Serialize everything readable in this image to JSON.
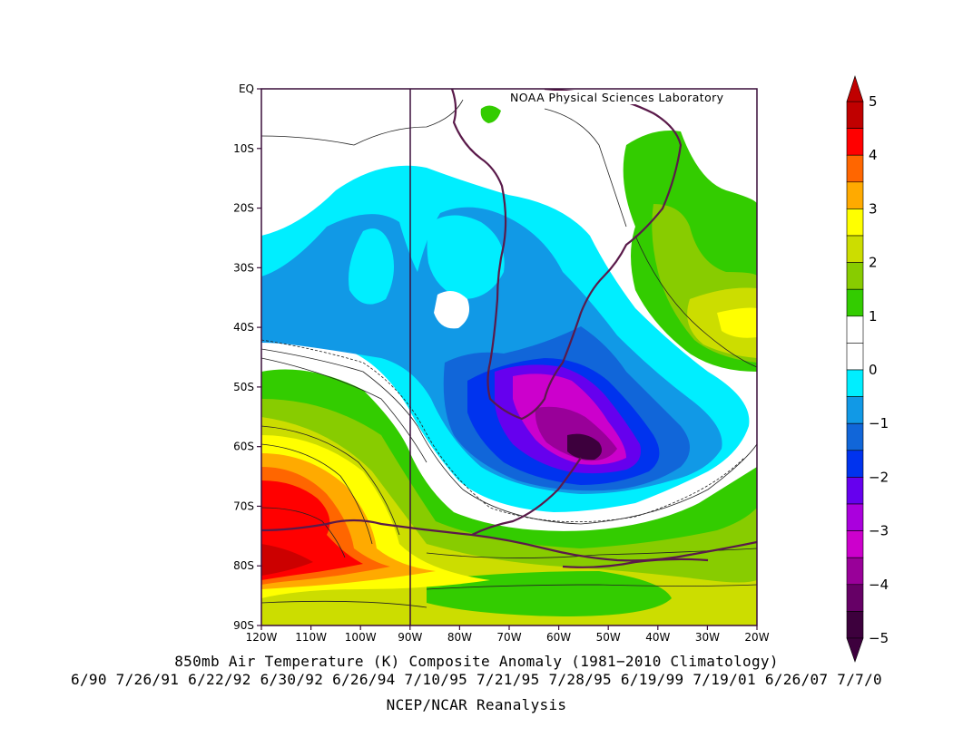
{
  "map": {
    "credit": "NOAA Physical Sciences Laboratory",
    "lat_labels": [
      "EQ",
      "10S",
      "20S",
      "30S",
      "40S",
      "50S",
      "60S",
      "70S",
      "80S",
      "90S"
    ],
    "lon_labels": [
      "120W",
      "110W",
      "100W",
      "90W",
      "80W",
      "70W",
      "60W",
      "50W",
      "40W",
      "30W",
      "20W"
    ],
    "extent": {
      "lon": [
        -120,
        -20
      ],
      "lat": [
        0,
        -90
      ]
    },
    "reference_meridian": "90W",
    "fields": {
      "pacific_cold_region": "-1 to -2",
      "drake_passage_minimum": "-4 to -5",
      "bellingshausen_maximum": "4 to 5",
      "south_atlantic_warm": "1 to 3"
    }
  },
  "colorbar": {
    "labels": [
      "5",
      "4",
      "3",
      "2",
      "1",
      "0",
      "−1",
      "−2",
      "−3",
      "−4",
      "−5"
    ],
    "colors": [
      "#c00000",
      "#ff0000",
      "#ff6600",
      "#ffaa00",
      "#ffff00",
      "#ccdd00",
      "#88cc00",
      "#33cc00",
      "#ffffff",
      "#ffffff",
      "#00eeff",
      "#1199e6",
      "#1166d9",
      "#0033ee",
      "#6600ee",
      "#aa00dd",
      "#cc00cc",
      "#990099",
      "#660066",
      "#3d003d"
    ]
  },
  "captions": {
    "title": "850mb Air Temperature (K) Composite Anomaly (1981−2010 Climatology)",
    "dates": "6/90 7/26/91 6/22/92 6/30/92 6/26/94 7/10/95 7/21/95 7/28/95 6/19/99 7/19/01 6/26/07 7/7/0",
    "source": "NCEP/NCAR Reanalysis"
  }
}
